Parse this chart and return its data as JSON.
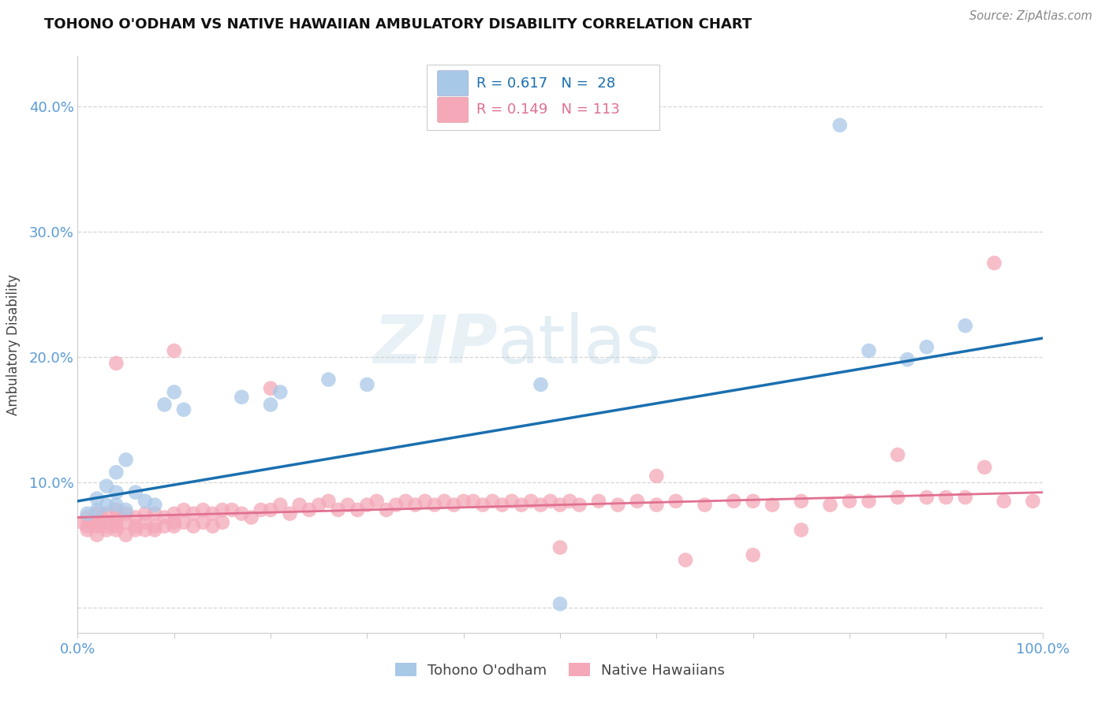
{
  "title": "TOHONO O'ODHAM VS NATIVE HAWAIIAN AMBULATORY DISABILITY CORRELATION CHART",
  "source": "Source: ZipAtlas.com",
  "ylabel": "Ambulatory Disability",
  "xlim": [
    0.0,
    1.0
  ],
  "ylim": [
    -0.02,
    0.44
  ],
  "yticks": [
    0.0,
    0.1,
    0.2,
    0.3,
    0.4
  ],
  "ytick_labels": [
    "",
    "10.0%",
    "20.0%",
    "30.0%",
    "40.0%"
  ],
  "blue_color": "#a8c8e8",
  "pink_color": "#f4a8b8",
  "blue_line_color": "#1a6faf",
  "pink_line_color": "#e07090",
  "grid_color": "#cccccc",
  "tick_color": "#5b9bd5",
  "label_color": "#444444",
  "background_color": "#ffffff",
  "legend_text_color": "#1a6faf",
  "legend_pink_text_color": "#e07090",
  "blue_line_y0": 0.085,
  "blue_line_y1": 0.215,
  "pink_line_y0": 0.072,
  "pink_line_y1": 0.092,
  "tohono_x": [
    0.01,
    0.02,
    0.02,
    0.03,
    0.03,
    0.04,
    0.04,
    0.04,
    0.05,
    0.05,
    0.06,
    0.07,
    0.08,
    0.09,
    0.1,
    0.11,
    0.17,
    0.2,
    0.21,
    0.26,
    0.3,
    0.48,
    0.79,
    0.82,
    0.86,
    0.88,
    0.92,
    0.5
  ],
  "tohono_y": [
    0.075,
    0.087,
    0.078,
    0.097,
    0.082,
    0.108,
    0.092,
    0.082,
    0.078,
    0.118,
    0.092,
    0.085,
    0.082,
    0.162,
    0.172,
    0.158,
    0.168,
    0.162,
    0.172,
    0.182,
    0.178,
    0.178,
    0.385,
    0.205,
    0.198,
    0.208,
    0.225,
    0.003
  ],
  "hawaiian_x": [
    0.005,
    0.01,
    0.01,
    0.01,
    0.015,
    0.02,
    0.02,
    0.02,
    0.02,
    0.025,
    0.03,
    0.03,
    0.03,
    0.03,
    0.04,
    0.04,
    0.04,
    0.04,
    0.04,
    0.05,
    0.05,
    0.05,
    0.06,
    0.06,
    0.06,
    0.07,
    0.07,
    0.07,
    0.08,
    0.08,
    0.08,
    0.09,
    0.09,
    0.1,
    0.1,
    0.1,
    0.11,
    0.11,
    0.12,
    0.12,
    0.13,
    0.13,
    0.14,
    0.14,
    0.15,
    0.15,
    0.16,
    0.17,
    0.18,
    0.19,
    0.2,
    0.21,
    0.22,
    0.23,
    0.24,
    0.25,
    0.26,
    0.27,
    0.28,
    0.29,
    0.3,
    0.31,
    0.32,
    0.33,
    0.34,
    0.35,
    0.36,
    0.37,
    0.38,
    0.39,
    0.4,
    0.41,
    0.42,
    0.43,
    0.44,
    0.45,
    0.46,
    0.47,
    0.48,
    0.49,
    0.5,
    0.51,
    0.52,
    0.54,
    0.56,
    0.58,
    0.6,
    0.62,
    0.65,
    0.68,
    0.7,
    0.72,
    0.75,
    0.78,
    0.8,
    0.82,
    0.85,
    0.88,
    0.9,
    0.92,
    0.94,
    0.96,
    0.99,
    0.04,
    0.1,
    0.5,
    0.2,
    0.6,
    0.7,
    0.85,
    0.95,
    0.63,
    0.75
  ],
  "hawaiian_y": [
    0.068,
    0.065,
    0.072,
    0.062,
    0.068,
    0.075,
    0.065,
    0.068,
    0.058,
    0.072,
    0.075,
    0.065,
    0.068,
    0.062,
    0.078,
    0.068,
    0.065,
    0.072,
    0.062,
    0.075,
    0.068,
    0.058,
    0.065,
    0.072,
    0.062,
    0.075,
    0.068,
    0.062,
    0.075,
    0.065,
    0.062,
    0.072,
    0.065,
    0.075,
    0.065,
    0.068,
    0.078,
    0.068,
    0.075,
    0.065,
    0.078,
    0.068,
    0.075,
    0.065,
    0.078,
    0.068,
    0.078,
    0.075,
    0.072,
    0.078,
    0.078,
    0.082,
    0.075,
    0.082,
    0.078,
    0.082,
    0.085,
    0.078,
    0.082,
    0.078,
    0.082,
    0.085,
    0.078,
    0.082,
    0.085,
    0.082,
    0.085,
    0.082,
    0.085,
    0.082,
    0.085,
    0.085,
    0.082,
    0.085,
    0.082,
    0.085,
    0.082,
    0.085,
    0.082,
    0.085,
    0.082,
    0.085,
    0.082,
    0.085,
    0.082,
    0.085,
    0.082,
    0.085,
    0.082,
    0.085,
    0.085,
    0.082,
    0.085,
    0.082,
    0.085,
    0.085,
    0.088,
    0.088,
    0.088,
    0.088,
    0.112,
    0.085,
    0.085,
    0.195,
    0.205,
    0.048,
    0.175,
    0.105,
    0.042,
    0.122,
    0.275,
    0.038,
    0.062
  ]
}
